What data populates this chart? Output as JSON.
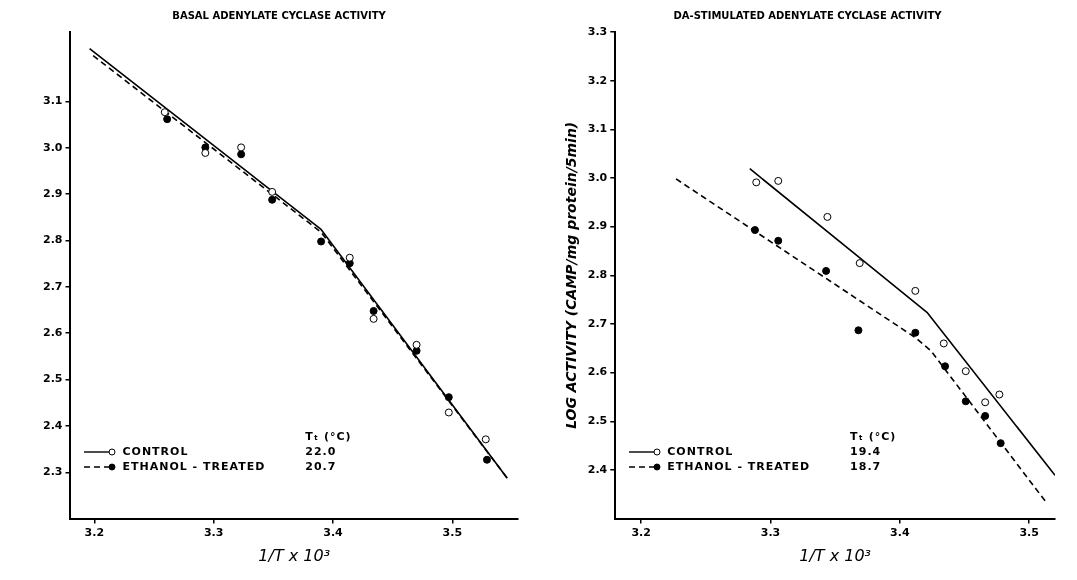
{
  "chart_data": [
    {
      "type": "scatter",
      "title": "BASAL ADENYLATE CYCLASE ACTIVITY",
      "xlabel": "1/T x 10³",
      "xlim": [
        3.18,
        3.555
      ],
      "xticks": [
        3.2,
        3.3,
        3.4,
        3.5
      ],
      "ylim": [
        2.2,
        3.25
      ],
      "yticks": [
        {
          "value": 2.3,
          "label": "2.3"
        },
        {
          "value": 2.4,
          "label": "2.4"
        },
        {
          "value": 2.5,
          "label": "2.5"
        },
        {
          "value": 2.6,
          "label": "2.6"
        },
        {
          "value": 2.7,
          "label": "2.7"
        },
        {
          "value": 2.8,
          "label": "2.8"
        },
        {
          "value": 2.9,
          "label": "2.9"
        },
        {
          "value": 3.0,
          "label": "3.0"
        },
        {
          "value": 3.1,
          "label": "3.1"
        }
      ],
      "grid": false,
      "legend": "bottom left",
      "marker": "circle",
      "annotations": [
        "Tₜ (°C)",
        "22.0",
        "20.7"
      ],
      "series": [
        {
          "name": "CONTROL",
          "type": "scatter",
          "color": "#000000",
          "line_style": "solid",
          "x": [
            3.259,
            3.293,
            3.323,
            3.349,
            3.414,
            3.434,
            3.47,
            3.497,
            3.528
          ],
          "values": [
            3.077,
            2.989,
            3.001,
            2.905,
            2.763,
            2.631,
            2.575,
            2.429,
            2.371
          ]
        },
        {
          "name": "ETHANOL - TREATED",
          "type": "scatter",
          "color": "#000000",
          "line_style": "dashed",
          "x": [
            3.261,
            3.293,
            3.323,
            3.349,
            3.39,
            3.414,
            3.434,
            3.47,
            3.497,
            3.529
          ],
          "values": [
            3.062,
            3.001,
            2.986,
            2.888,
            2.798,
            2.751,
            2.648,
            2.562,
            2.462,
            2.327
          ]
        },
        {
          "type": "line",
          "color": "#000000",
          "line_style": "solid",
          "marker": "none",
          "x": [
            3.196,
            3.39,
            3.546
          ],
          "values": [
            3.214,
            2.824,
            2.287
          ]
        },
        {
          "type": "line",
          "color": "#000000",
          "line_style": "dashed",
          "marker": "none",
          "x": [
            3.199,
            3.39,
            3.546
          ],
          "values": [
            3.199,
            2.818,
            2.287
          ]
        }
      ]
    },
    {
      "type": "scatter",
      "title": "DA-STIMULATED ADENYLATE CYCLASE ACTIVITY",
      "xlabel": "1/T x 10³",
      "ylabel": "LOG ACTIVITY (CAMP/mg protein/5min)",
      "xlim": [
        3.18,
        3.52
      ],
      "xticks": [
        3.2,
        3.3,
        3.4,
        3.5
      ],
      "ylim": [
        2.3,
        3.3
      ],
      "yticks": [
        {
          "value": 2.4,
          "label": "2.4"
        },
        {
          "value": 2.5,
          "label": "2.5"
        },
        {
          "value": 2.6,
          "label": "2.6"
        },
        {
          "value": 2.7,
          "label": "2.7"
        },
        {
          "value": 2.8,
          "label": "2.8"
        },
        {
          "value": 2.9,
          "label": "2.9"
        },
        {
          "value": 3.0,
          "label": "3.0"
        },
        {
          "value": 3.1,
          "label": "3.1"
        },
        {
          "value": 3.2,
          "label": "3.2"
        },
        {
          "value": 3.3,
          "label": "3.3"
        }
      ],
      "grid": false,
      "legend": "bottom left",
      "marker": "circle",
      "annotations": [
        "Tₜ (°C)",
        "19.4",
        "18.7"
      ],
      "series": [
        {
          "name": "CONTROL",
          "type": "scatter",
          "color": "#000000",
          "line_style": "solid",
          "x": [
            3.289,
            3.306,
            3.344,
            3.369,
            3.412,
            3.434,
            3.451,
            3.466,
            3.477
          ],
          "values": [
            2.991,
            2.994,
            2.92,
            2.825,
            2.768,
            2.66,
            2.603,
            2.539,
            2.555
          ]
        },
        {
          "name": "ETHANOL - TREATED",
          "type": "scatter",
          "color": "#000000",
          "line_style": "dashed",
          "x": [
            3.288,
            3.306,
            3.343,
            3.368,
            3.412,
            3.435,
            3.451,
            3.466,
            3.478
          ],
          "values": [
            2.893,
            2.871,
            2.809,
            2.687,
            2.682,
            2.613,
            2.541,
            2.511,
            2.455
          ]
        },
        {
          "type": "line",
          "color": "#000000",
          "line_style": "solid",
          "marker": "none",
          "x": [
            3.284,
            3.421,
            3.52
          ],
          "values": [
            3.019,
            2.724,
            2.389
          ]
        },
        {
          "type": "line",
          "color": "#000000",
          "line_style": "dashed",
          "marker": "none",
          "x": [
            3.227,
            3.412,
            3.424,
            3.513
          ],
          "values": [
            2.998,
            2.672,
            2.645,
            2.334
          ]
        }
      ]
    }
  ]
}
